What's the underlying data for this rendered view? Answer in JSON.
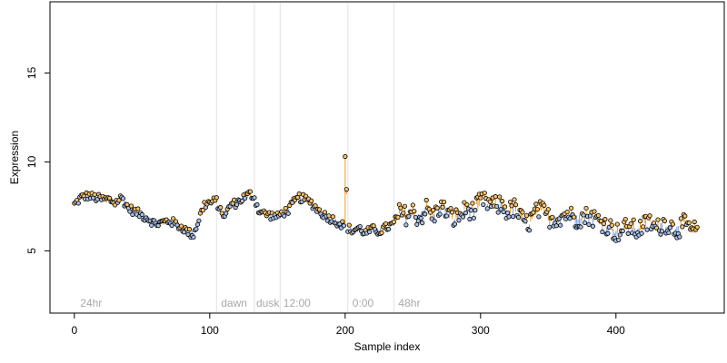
{
  "chart_data": {
    "type": "scatter",
    "xlabel": "Sample index",
    "ylabel": "Expression",
    "xlim": [
      -18,
      480
    ],
    "ylim": [
      1.5,
      19
    ],
    "x_ticks": [
      0,
      100,
      200,
      300,
      400
    ],
    "y_ticks": [
      5,
      10,
      15
    ],
    "grid": false,
    "colors": {
      "point_above": "#f5c16c",
      "point_below": "#a7bde6",
      "segment_above": "#f19b14",
      "segment_below": "#7e9fd6",
      "divider": "#e2e2e2",
      "annotation": "#a8a8a8",
      "point_edge": "#000000"
    },
    "annotations": [
      {
        "x": 3,
        "text": "24hr"
      },
      {
        "x": 107,
        "text": "dawn"
      },
      {
        "x": 133,
        "text": "dusk"
      },
      {
        "x": 153,
        "text": "12:00"
      },
      {
        "x": 204,
        "text": "0:00"
      },
      {
        "x": 238,
        "text": "48hr"
      }
    ],
    "dividers": [
      105,
      133,
      152,
      202,
      236
    ],
    "anchors": [
      [
        0,
        7.6
      ],
      [
        5,
        8.0
      ],
      [
        10,
        8.1
      ],
      [
        15,
        8.0
      ],
      [
        20,
        7.9
      ],
      [
        25,
        7.9
      ],
      [
        30,
        7.7
      ],
      [
        35,
        8.0
      ],
      [
        40,
        7.4
      ],
      [
        45,
        7.2
      ],
      [
        50,
        7.0
      ],
      [
        55,
        6.8
      ],
      [
        60,
        6.5
      ],
      [
        65,
        6.6
      ],
      [
        70,
        6.7
      ],
      [
        75,
        6.5
      ],
      [
        80,
        6.3
      ],
      [
        85,
        6.0
      ],
      [
        88,
        5.9
      ],
      [
        92,
        6.8
      ],
      [
        96,
        7.6
      ],
      [
        100,
        7.7
      ],
      [
        105,
        7.8
      ],
      [
        108,
        7.2
      ],
      [
        112,
        7.0
      ],
      [
        115,
        7.6
      ],
      [
        120,
        7.7
      ],
      [
        125,
        8.0
      ],
      [
        130,
        8.2
      ],
      [
        133,
        8.0
      ],
      [
        136,
        7.3
      ],
      [
        140,
        7.1
      ],
      [
        145,
        7.0
      ],
      [
        150,
        6.9
      ],
      [
        153,
        7.1
      ],
      [
        158,
        7.3
      ],
      [
        162,
        7.7
      ],
      [
        166,
        8.0
      ],
      [
        170,
        7.9
      ],
      [
        175,
        7.7
      ],
      [
        180,
        7.3
      ],
      [
        185,
        7.0
      ],
      [
        190,
        6.8
      ],
      [
        195,
        6.6
      ],
      [
        199,
        6.4
      ],
      [
        200,
        10.3
      ],
      [
        202,
        6.3
      ],
      [
        205,
        6.1
      ],
      [
        210,
        6.3
      ],
      [
        215,
        6.0
      ],
      [
        220,
        6.2
      ],
      [
        225,
        6.1
      ],
      [
        230,
        6.3
      ],
      [
        236,
        6.5
      ],
      [
        240,
        7.1
      ],
      [
        245,
        7.0
      ],
      [
        250,
        7.2
      ],
      [
        255,
        6.8
      ],
      [
        260,
        7.4
      ],
      [
        265,
        6.9
      ],
      [
        270,
        7.5
      ],
      [
        275,
        7.2
      ],
      [
        280,
        6.8
      ],
      [
        285,
        7.0
      ],
      [
        290,
        7.4
      ],
      [
        295,
        7.2
      ],
      [
        300,
        7.8
      ],
      [
        305,
        7.7
      ],
      [
        310,
        7.5
      ],
      [
        315,
        7.6
      ],
      [
        320,
        7.2
      ],
      [
        325,
        7.4
      ],
      [
        330,
        6.8
      ],
      [
        335,
        6.5
      ],
      [
        340,
        7.1
      ],
      [
        345,
        7.3
      ],
      [
        350,
        6.9
      ],
      [
        355,
        6.8
      ],
      [
        360,
        7.0
      ],
      [
        365,
        7.1
      ],
      [
        370,
        6.8
      ],
      [
        375,
        6.9
      ],
      [
        380,
        7.0
      ],
      [
        385,
        6.8
      ],
      [
        390,
        6.6
      ],
      [
        395,
        6.4
      ],
      [
        400,
        6.0
      ],
      [
        405,
        6.2
      ],
      [
        410,
        6.4
      ],
      [
        415,
        6.1
      ],
      [
        420,
        6.4
      ],
      [
        425,
        6.6
      ],
      [
        430,
        6.2
      ],
      [
        435,
        6.6
      ],
      [
        440,
        6.4
      ],
      [
        445,
        6.2
      ],
      [
        450,
        6.5
      ],
      [
        455,
        6.2
      ],
      [
        460,
        6.1
      ]
    ]
  }
}
